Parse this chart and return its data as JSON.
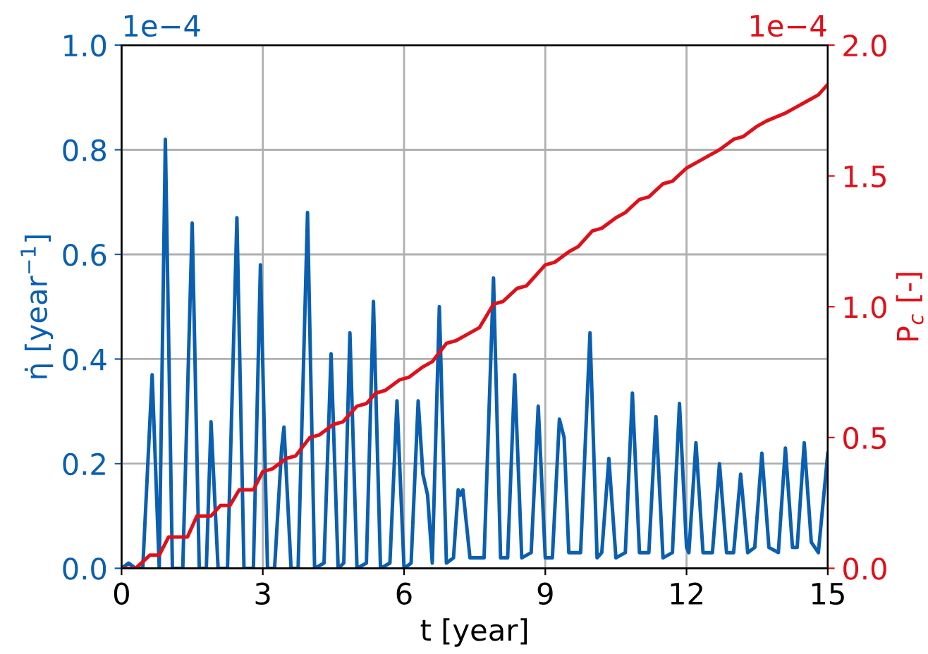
{
  "chart_data": {
    "type": "line",
    "xlabel": "t [year]",
    "ylabel": "η̇ [year$^{−1}$]",
    "y2label": "P$_{c}$ [-]",
    "annotations": [
      "1e−4",
      "1e−4"
    ],
    "xlim": [
      0,
      15
    ],
    "xticks": [
      0,
      3,
      6,
      9,
      12,
      15
    ],
    "ylim": [
      0,
      1.0
    ],
    "yticks": [
      {
        "value": 0,
        "label": "0.0"
      },
      0.2,
      0.4,
      0.6,
      0.8,
      {
        "value": 1,
        "label": "1.0"
      }
    ],
    "y2lim": [
      0,
      2.0
    ],
    "y2ticks": [
      {
        "value": 0,
        "label": "0.0"
      },
      0.5,
      {
        "value": 1,
        "label": "1.0"
      },
      1.5,
      {
        "value": 2,
        "label": "2.0"
      }
    ],
    "grid": true,
    "line_style": "solid",
    "marker": "none",
    "series": [
      {
        "color": "#0a5fb0",
        "x": [
          0,
          0.15,
          0.3,
          0.45,
          0.65,
          0.8,
          0.93,
          1.08,
          1.3,
          1.5,
          1.65,
          1.8,
          1.9,
          2.05,
          2.25,
          2.45,
          2.6,
          2.8,
          2.95,
          3.1,
          3.25,
          3.4,
          3.45,
          3.6,
          3.75,
          3.95,
          4.1,
          4.3,
          4.45,
          4.6,
          4.72,
          4.85,
          5.0,
          5.2,
          5.35,
          5.5,
          5.7,
          5.85,
          6.0,
          6.15,
          6.3,
          6.4,
          6.5,
          6.6,
          6.75,
          6.9,
          7.05,
          7.15,
          7.2,
          7.25,
          7.4,
          7.7,
          7.9,
          8.05,
          8.2,
          8.35,
          8.5,
          8.7,
          8.85,
          9.0,
          9.15,
          9.3,
          9.4,
          9.5,
          9.75,
          9.95,
          10.1,
          10.2,
          10.35,
          10.5,
          10.7,
          10.85,
          11.0,
          11.2,
          11.35,
          11.5,
          11.7,
          11.85,
          12.0,
          12.05,
          12.2,
          12.35,
          12.55,
          12.7,
          12.85,
          13.0,
          13.15,
          13.3,
          13.45,
          13.6,
          13.75,
          13.95,
          14.1,
          14.25,
          14.35,
          14.5,
          14.65,
          14.8,
          15.0
        ],
        "values": [
          0.0,
          0.01,
          0.0,
          0.0,
          0.37,
          0.0,
          0.82,
          0.0,
          0.0,
          0.66,
          0.0,
          0.0,
          0.28,
          0.0,
          0.0,
          0.67,
          0.0,
          0.0,
          0.58,
          0.0,
          0.0,
          0.23,
          0.27,
          0.0,
          0.0,
          0.68,
          0.0,
          0.01,
          0.41,
          0.0,
          0.01,
          0.45,
          0.0,
          0.01,
          0.51,
          0.0,
          0.01,
          0.32,
          0.0,
          0.01,
          0.32,
          0.18,
          0.14,
          0.01,
          0.5,
          0.01,
          0.02,
          0.15,
          0.14,
          0.15,
          0.02,
          0.02,
          0.555,
          0.02,
          0.02,
          0.37,
          0.02,
          0.03,
          0.31,
          0.02,
          0.02,
          0.285,
          0.25,
          0.03,
          0.03,
          0.45,
          0.02,
          0.03,
          0.21,
          0.02,
          0.03,
          0.335,
          0.03,
          0.03,
          0.29,
          0.02,
          0.03,
          0.315,
          0.04,
          0.03,
          0.24,
          0.03,
          0.03,
          0.2,
          0.03,
          0.03,
          0.18,
          0.03,
          0.04,
          0.22,
          0.04,
          0.03,
          0.23,
          0.04,
          0.04,
          0.24,
          0.05,
          0.03,
          0.22
        ]
      },
      {
        "color": "#e0101a",
        "axis": "y2",
        "x": [
          0,
          0.3,
          0.6,
          0.8,
          1.0,
          1.4,
          1.6,
          1.9,
          2.1,
          2.3,
          2.5,
          2.8,
          3.0,
          3.2,
          3.5,
          3.7,
          4.0,
          4.2,
          4.5,
          4.7,
          5.0,
          5.2,
          5.4,
          5.6,
          5.9,
          6.1,
          6.4,
          6.6,
          6.9,
          7.1,
          7.4,
          7.6,
          7.9,
          8.1,
          8.4,
          8.6,
          9.0,
          9.2,
          9.5,
          9.7,
          10.0,
          10.2,
          10.5,
          10.7,
          11.0,
          11.2,
          11.5,
          11.7,
          12.0,
          12.2,
          12.5,
          12.7,
          13.0,
          13.2,
          13.5,
          13.7,
          14.1,
          14.3,
          14.6,
          14.8,
          15.0
        ],
        "values": [
          0.0,
          0.0,
          0.05,
          0.05,
          0.12,
          0.12,
          0.2,
          0.2,
          0.24,
          0.24,
          0.3,
          0.3,
          0.37,
          0.38,
          0.42,
          0.43,
          0.5,
          0.51,
          0.55,
          0.56,
          0.62,
          0.63,
          0.67,
          0.68,
          0.72,
          0.73,
          0.77,
          0.79,
          0.86,
          0.87,
          0.9,
          0.92,
          1.01,
          1.02,
          1.07,
          1.08,
          1.16,
          1.17,
          1.21,
          1.23,
          1.29,
          1.3,
          1.34,
          1.36,
          1.41,
          1.42,
          1.47,
          1.48,
          1.53,
          1.55,
          1.58,
          1.6,
          1.64,
          1.65,
          1.69,
          1.71,
          1.74,
          1.76,
          1.79,
          1.81,
          1.85
        ]
      }
    ]
  }
}
